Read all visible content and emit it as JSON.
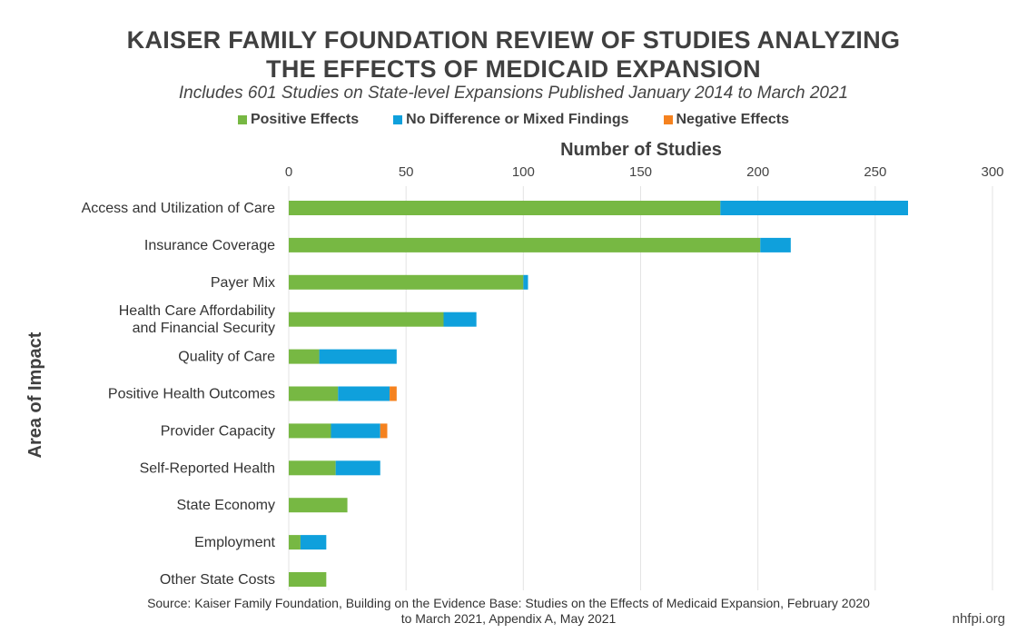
{
  "header": {
    "title_line1": "KAISER FAMILY FOUNDATION REVIEW OF STUDIES ANALYZING",
    "title_line2": "THE EFFECTS OF MEDICAID EXPANSION",
    "subtitle": "Includes 601 Studies on State-level Expansions Published January 2014 to March 2021"
  },
  "footer": {
    "source_line1": "Source: Kaiser Family Foundation, Building on the Evidence Base: Studies on the Effects of Medicaid Expansion, February 2020",
    "source_line2": "to March 2021, Appendix A, May 2021",
    "credit": "nhfpi.org"
  },
  "chart_data": {
    "type": "bar",
    "orientation": "horizontal",
    "stacked": true,
    "xlabel": "Number of Studies",
    "ylabel": "Area of Impact",
    "xlim": [
      0,
      300
    ],
    "x_ticks": [
      0,
      50,
      100,
      150,
      200,
      250,
      300
    ],
    "x_axis_position": "top",
    "grid": true,
    "legend_position": "top",
    "categories": [
      [
        "Access and Utilization of Care"
      ],
      [
        "Insurance Coverage"
      ],
      [
        "Payer Mix"
      ],
      [
        "Health Care Affordability",
        "and Financial Security"
      ],
      [
        "Quality of Care"
      ],
      [
        "Positive Health Outcomes"
      ],
      [
        "Provider Capacity"
      ],
      [
        "Self-Reported Health"
      ],
      [
        "State Economy"
      ],
      [
        "Employment"
      ],
      [
        "Other State Costs"
      ]
    ],
    "series": [
      {
        "name": "Positive Effects",
        "color": "#77b843",
        "values": [
          184,
          201,
          100,
          66,
          13,
          21,
          18,
          20,
          25,
          5,
          16
        ]
      },
      {
        "name": "No Difference or Mixed Findings",
        "color": "#0fa0dc",
        "values": [
          80,
          13,
          2,
          14,
          33,
          22,
          21,
          19,
          0,
          11,
          0
        ]
      },
      {
        "name": "Negative Effects",
        "color": "#f5821f",
        "values": [
          0,
          0,
          0,
          0,
          0,
          3,
          3,
          0,
          0,
          0,
          0
        ]
      }
    ]
  }
}
